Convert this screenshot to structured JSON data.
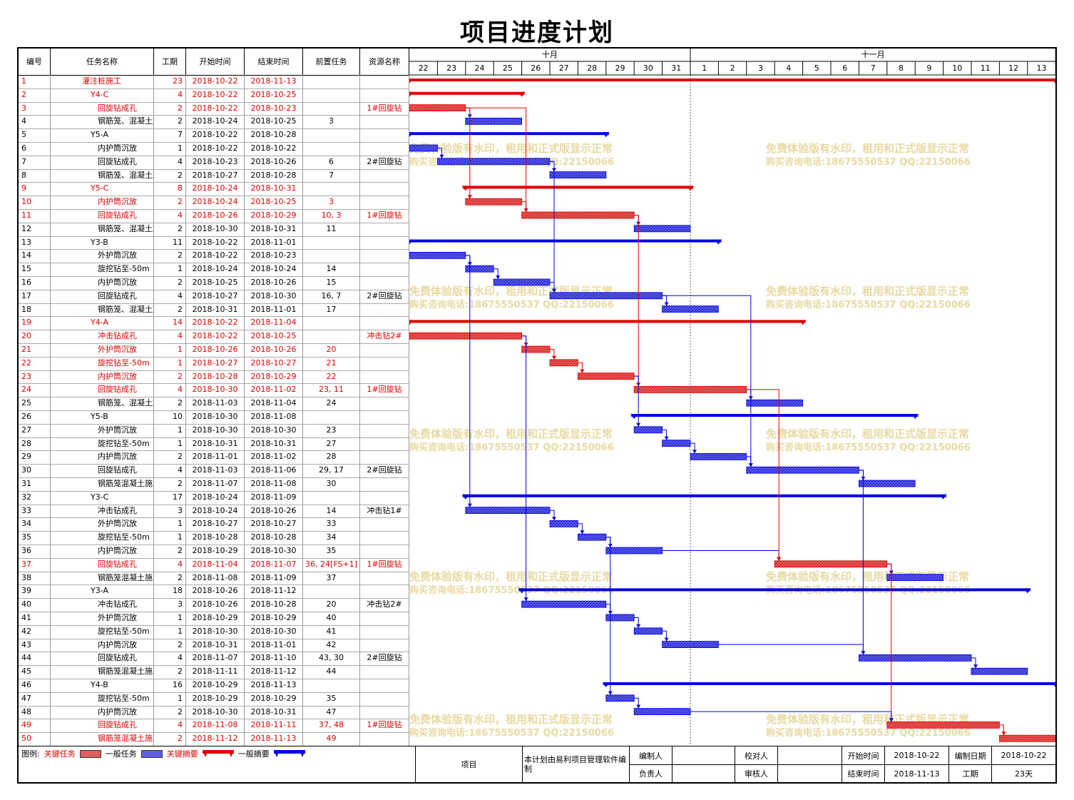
{
  "title": "项目进度计划",
  "columns": [
    "编号",
    "任务名称",
    "工期",
    "开始时间",
    "结束时间",
    "前置任务",
    "资源名称"
  ],
  "months": [
    {
      "label": "十月",
      "from": 0,
      "to": 10
    },
    {
      "label": "十一月",
      "from": 10,
      "to": 23
    }
  ],
  "days": [
    "22",
    "23",
    "24",
    "25",
    "26",
    "27",
    "28",
    "29",
    "30",
    "31",
    "1",
    "2",
    "3",
    "4",
    "5",
    "6",
    "7",
    "8",
    "9",
    "10",
    "11",
    "12",
    "13"
  ],
  "tasks": [
    {
      "id": "1",
      "name": "灌注桩施工",
      "dur": "23",
      "start": "2018-10-22",
      "end": "2018-11-13",
      "pred": "",
      "res": "",
      "lvl": 1,
      "crit": true,
      "summary": true,
      "s": 0,
      "e": 23
    },
    {
      "id": "2",
      "name": "Y4-C",
      "dur": "4",
      "start": "2018-10-22",
      "end": "2018-10-25",
      "pred": "",
      "res": "",
      "lvl": 2,
      "crit": true,
      "summary": true,
      "s": 0,
      "e": 4
    },
    {
      "id": "3",
      "name": "回旋钻成孔",
      "dur": "2",
      "start": "2018-10-22",
      "end": "2018-10-23",
      "pred": "",
      "res": "1#回旋钻",
      "lvl": 3,
      "crit": true,
      "summary": false,
      "s": 0,
      "e": 2
    },
    {
      "id": "4",
      "name": "钢筋笼、混凝土施工",
      "dur": "2",
      "start": "2018-10-24",
      "end": "2018-10-25",
      "pred": "3",
      "res": "",
      "lvl": 3,
      "crit": false,
      "summary": false,
      "s": 2,
      "e": 4
    },
    {
      "id": "5",
      "name": "Y5-A",
      "dur": "7",
      "start": "2018-10-22",
      "end": "2018-10-28",
      "pred": "",
      "res": "",
      "lvl": 2,
      "crit": false,
      "summary": true,
      "s": 0,
      "e": 7
    },
    {
      "id": "6",
      "name": "内护筒沉放",
      "dur": "1",
      "start": "2018-10-22",
      "end": "2018-10-22",
      "pred": "",
      "res": "",
      "lvl": 3,
      "crit": false,
      "summary": false,
      "s": 0,
      "e": 1
    },
    {
      "id": "7",
      "name": "回旋钻成孔",
      "dur": "4",
      "start": "2018-10-23",
      "end": "2018-10-26",
      "pred": "6",
      "res": "2#回旋钻",
      "lvl": 3,
      "crit": false,
      "summary": false,
      "s": 1,
      "e": 5
    },
    {
      "id": "8",
      "name": "钢筋笼、混凝土施工",
      "dur": "2",
      "start": "2018-10-27",
      "end": "2018-10-28",
      "pred": "7",
      "res": "",
      "lvl": 3,
      "crit": false,
      "summary": false,
      "s": 5,
      "e": 7
    },
    {
      "id": "9",
      "name": "Y5-C",
      "dur": "8",
      "start": "2018-10-24",
      "end": "2018-10-31",
      "pred": "",
      "res": "",
      "lvl": 2,
      "crit": true,
      "summary": true,
      "s": 2,
      "e": 10
    },
    {
      "id": "10",
      "name": "内护筒沉放",
      "dur": "2",
      "start": "2018-10-24",
      "end": "2018-10-25",
      "pred": "3",
      "res": "",
      "lvl": 3,
      "crit": true,
      "summary": false,
      "s": 2,
      "e": 4
    },
    {
      "id": "11",
      "name": "回旋钻成孔",
      "dur": "4",
      "start": "2018-10-26",
      "end": "2018-10-29",
      "pred": "10, 3",
      "res": "1#回旋钻",
      "lvl": 3,
      "crit": true,
      "summary": false,
      "s": 4,
      "e": 8
    },
    {
      "id": "12",
      "name": "钢筋笼、混凝土施工",
      "dur": "2",
      "start": "2018-10-30",
      "end": "2018-10-31",
      "pred": "11",
      "res": "",
      "lvl": 3,
      "crit": false,
      "summary": false,
      "s": 8,
      "e": 10
    },
    {
      "id": "13",
      "name": "Y3-B",
      "dur": "11",
      "start": "2018-10-22",
      "end": "2018-11-01",
      "pred": "",
      "res": "",
      "lvl": 2,
      "crit": false,
      "summary": true,
      "s": 0,
      "e": 11
    },
    {
      "id": "14",
      "name": "外护筒沉放",
      "dur": "2",
      "start": "2018-10-22",
      "end": "2018-10-23",
      "pred": "",
      "res": "",
      "lvl": 3,
      "crit": false,
      "summary": false,
      "s": 0,
      "e": 2
    },
    {
      "id": "15",
      "name": "旋挖钻至-50m",
      "dur": "1",
      "start": "2018-10-24",
      "end": "2018-10-24",
      "pred": "14",
      "res": "",
      "lvl": 3,
      "crit": false,
      "summary": false,
      "s": 2,
      "e": 3
    },
    {
      "id": "16",
      "name": "内护筒沉放",
      "dur": "2",
      "start": "2018-10-25",
      "end": "2018-10-26",
      "pred": "15",
      "res": "",
      "lvl": 3,
      "crit": false,
      "summary": false,
      "s": 3,
      "e": 5
    },
    {
      "id": "17",
      "name": "回旋钻成孔",
      "dur": "4",
      "start": "2018-10-27",
      "end": "2018-10-30",
      "pred": "16, 7",
      "res": "2#回旋钻",
      "lvl": 3,
      "crit": false,
      "summary": false,
      "s": 5,
      "e": 9
    },
    {
      "id": "18",
      "name": "钢筋笼、混凝土施工",
      "dur": "2",
      "start": "2018-10-31",
      "end": "2018-11-01",
      "pred": "17",
      "res": "",
      "lvl": 3,
      "crit": false,
      "summary": false,
      "s": 9,
      "e": 11
    },
    {
      "id": "19",
      "name": "Y4-A",
      "dur": "14",
      "start": "2018-10-22",
      "end": "2018-11-04",
      "pred": "",
      "res": "",
      "lvl": 2,
      "crit": true,
      "summary": true,
      "s": 0,
      "e": 14
    },
    {
      "id": "20",
      "name": "冲击钻成孔",
      "dur": "4",
      "start": "2018-10-22",
      "end": "2018-10-25",
      "pred": "",
      "res": "冲击钻2#",
      "lvl": 3,
      "crit": true,
      "summary": false,
      "s": 0,
      "e": 4
    },
    {
      "id": "21",
      "name": "外护筒沉放",
      "dur": "1",
      "start": "2018-10-26",
      "end": "2018-10-26",
      "pred": "20",
      "res": "",
      "lvl": 3,
      "crit": true,
      "summary": false,
      "s": 4,
      "e": 5
    },
    {
      "id": "22",
      "name": "旋挖钻至-50m",
      "dur": "1",
      "start": "2018-10-27",
      "end": "2018-10-27",
      "pred": "21",
      "res": "",
      "lvl": 3,
      "crit": true,
      "summary": false,
      "s": 5,
      "e": 6
    },
    {
      "id": "23",
      "name": "内护筒沉放",
      "dur": "2",
      "start": "2018-10-28",
      "end": "2018-10-29",
      "pred": "22",
      "res": "",
      "lvl": 3,
      "crit": true,
      "summary": false,
      "s": 6,
      "e": 8
    },
    {
      "id": "24",
      "name": "回旋钻成孔",
      "dur": "4",
      "start": "2018-10-30",
      "end": "2018-11-02",
      "pred": "23, 11",
      "res": "1#回旋钻",
      "lvl": 3,
      "crit": true,
      "summary": false,
      "s": 8,
      "e": 12
    },
    {
      "id": "25",
      "name": "钢筋笼、混凝土施工",
      "dur": "2",
      "start": "2018-11-03",
      "end": "2018-11-04",
      "pred": "24",
      "res": "",
      "lvl": 3,
      "crit": false,
      "summary": false,
      "s": 12,
      "e": 14
    },
    {
      "id": "26",
      "name": "Y5-B",
      "dur": "10",
      "start": "2018-10-30",
      "end": "2018-11-08",
      "pred": "",
      "res": "",
      "lvl": 2,
      "crit": false,
      "summary": true,
      "s": 8,
      "e": 18
    },
    {
      "id": "27",
      "name": "外护筒沉放",
      "dur": "1",
      "start": "2018-10-30",
      "end": "2018-10-30",
      "pred": "23",
      "res": "",
      "lvl": 3,
      "crit": false,
      "summary": false,
      "s": 8,
      "e": 9
    },
    {
      "id": "28",
      "name": "旋挖钻至-50m",
      "dur": "1",
      "start": "2018-10-31",
      "end": "2018-10-31",
      "pred": "27",
      "res": "",
      "lvl": 3,
      "crit": false,
      "summary": false,
      "s": 9,
      "e": 10
    },
    {
      "id": "29",
      "name": "内护筒沉放",
      "dur": "2",
      "start": "2018-11-01",
      "end": "2018-11-02",
      "pred": "28",
      "res": "",
      "lvl": 3,
      "crit": false,
      "summary": false,
      "s": 10,
      "e": 12
    },
    {
      "id": "30",
      "name": "回旋钻成孔",
      "dur": "4",
      "start": "2018-11-03",
      "end": "2018-11-06",
      "pred": "29, 17",
      "res": "2#回旋钻",
      "lvl": 3,
      "crit": false,
      "summary": false,
      "s": 12,
      "e": 16
    },
    {
      "id": "31",
      "name": "钢筋笼混凝土施工",
      "dur": "2",
      "start": "2018-11-07",
      "end": "2018-11-08",
      "pred": "30",
      "res": "",
      "lvl": 3,
      "crit": false,
      "summary": false,
      "s": 16,
      "e": 18
    },
    {
      "id": "32",
      "name": "Y3-C",
      "dur": "17",
      "start": "2018-10-24",
      "end": "2018-11-09",
      "pred": "",
      "res": "",
      "lvl": 2,
      "crit": false,
      "summary": true,
      "s": 2,
      "e": 19
    },
    {
      "id": "33",
      "name": "冲击钻成孔",
      "dur": "3",
      "start": "2018-10-24",
      "end": "2018-10-26",
      "pred": "14",
      "res": "冲击钻1#",
      "lvl": 3,
      "crit": false,
      "summary": false,
      "s": 2,
      "e": 5
    },
    {
      "id": "34",
      "name": "外护筒沉放",
      "dur": "1",
      "start": "2018-10-27",
      "end": "2018-10-27",
      "pred": "33",
      "res": "",
      "lvl": 3,
      "crit": false,
      "summary": false,
      "s": 5,
      "e": 6
    },
    {
      "id": "35",
      "name": "旋挖钻至-50m",
      "dur": "1",
      "start": "2018-10-28",
      "end": "2018-10-28",
      "pred": "34",
      "res": "",
      "lvl": 3,
      "crit": false,
      "summary": false,
      "s": 6,
      "e": 7
    },
    {
      "id": "36",
      "name": "内护筒沉放",
      "dur": "2",
      "start": "2018-10-29",
      "end": "2018-10-30",
      "pred": "35",
      "res": "",
      "lvl": 3,
      "crit": false,
      "summary": false,
      "s": 7,
      "e": 9
    },
    {
      "id": "37",
      "name": "回旋钻成孔",
      "dur": "4",
      "start": "2018-11-04",
      "end": "2018-11-07",
      "pred": "36, 24[FS+1]",
      "res": "1#回旋钻",
      "lvl": 3,
      "crit": true,
      "summary": false,
      "s": 13,
      "e": 17
    },
    {
      "id": "38",
      "name": "钢筋笼混凝土施工",
      "dur": "2",
      "start": "2018-11-08",
      "end": "2018-11-09",
      "pred": "37",
      "res": "",
      "lvl": 3,
      "crit": false,
      "summary": false,
      "s": 17,
      "e": 19
    },
    {
      "id": "39",
      "name": "Y3-A",
      "dur": "18",
      "start": "2018-10-26",
      "end": "2018-11-12",
      "pred": "",
      "res": "",
      "lvl": 2,
      "crit": false,
      "summary": true,
      "s": 4,
      "e": 22
    },
    {
      "id": "40",
      "name": "冲击钻成孔",
      "dur": "3",
      "start": "2018-10-26",
      "end": "2018-10-28",
      "pred": "20",
      "res": "冲击钻2#",
      "lvl": 3,
      "crit": false,
      "summary": false,
      "s": 4,
      "e": 7
    },
    {
      "id": "41",
      "name": "外护筒沉放",
      "dur": "1",
      "start": "2018-10-29",
      "end": "2018-10-29",
      "pred": "40",
      "res": "",
      "lvl": 3,
      "crit": false,
      "summary": false,
      "s": 7,
      "e": 8
    },
    {
      "id": "42",
      "name": "旋挖钻至-50m",
      "dur": "1",
      "start": "2018-10-30",
      "end": "2018-10-30",
      "pred": "41",
      "res": "",
      "lvl": 3,
      "crit": false,
      "summary": false,
      "s": 8,
      "e": 9
    },
    {
      "id": "43",
      "name": "内护筒沉放",
      "dur": "2",
      "start": "2018-10-31",
      "end": "2018-11-01",
      "pred": "42",
      "res": "",
      "lvl": 3,
      "crit": false,
      "summary": false,
      "s": 9,
      "e": 11
    },
    {
      "id": "44",
      "name": "回旋钻成孔",
      "dur": "4",
      "start": "2018-11-07",
      "end": "2018-11-10",
      "pred": "43, 30",
      "res": "2#回旋钻",
      "lvl": 3,
      "crit": false,
      "summary": false,
      "s": 16,
      "e": 20
    },
    {
      "id": "45",
      "name": "钢筋笼混凝土施工",
      "dur": "2",
      "start": "2018-11-11",
      "end": "2018-11-12",
      "pred": "44",
      "res": "",
      "lvl": 3,
      "crit": false,
      "summary": false,
      "s": 20,
      "e": 22
    },
    {
      "id": "46",
      "name": "Y4-B",
      "dur": "16",
      "start": "2018-10-29",
      "end": "2018-11-13",
      "pred": "",
      "res": "",
      "lvl": 2,
      "crit": false,
      "summary": true,
      "s": 7,
      "e": 23
    },
    {
      "id": "47",
      "name": "旋挖钻至-50m",
      "dur": "1",
      "start": "2018-10-29",
      "end": "2018-10-29",
      "pred": "35",
      "res": "",
      "lvl": 3,
      "crit": false,
      "summary": false,
      "s": 7,
      "e": 8
    },
    {
      "id": "48",
      "name": "内护筒沉放",
      "dur": "2",
      "start": "2018-10-30",
      "end": "2018-10-31",
      "pred": "47",
      "res": "",
      "lvl": 3,
      "crit": false,
      "summary": false,
      "s": 8,
      "e": 10
    },
    {
      "id": "49",
      "name": "回旋钻成孔",
      "dur": "4",
      "start": "2018-11-08",
      "end": "2018-11-11",
      "pred": "37, 48",
      "res": "1#回旋钻",
      "lvl": 3,
      "crit": true,
      "summary": false,
      "s": 17,
      "e": 21
    },
    {
      "id": "50",
      "name": "钢筋笼混凝土施工",
      "dur": "2",
      "start": "2018-11-12",
      "end": "2018-11-13",
      "pred": "49",
      "res": "",
      "lvl": 3,
      "crit": true,
      "summary": false,
      "s": 21,
      "e": 23
    }
  ],
  "watermark": {
    "line1": "免费体验版有水印，租用和正式版显示正常",
    "line2": "购买咨询电话:18675550537 QQ:22150066",
    "color": "#e8d9a0"
  },
  "colors": {
    "critical": "#e00000",
    "normal": "#0000e0",
    "critical_fill": "#e06060",
    "normal_fill": "#6060e0"
  },
  "legend": {
    "label": "图例:",
    "critical_task": "关键任务",
    "normal_task": "一般任务",
    "critical_summary": "关键摘要",
    "normal_summary": "一般摘要"
  },
  "footer": {
    "project_label": "项目",
    "software_note": "本计划由易利项目管理软件编制",
    "maker_label": "编制人",
    "maker": "",
    "checker_label": "校对人",
    "checker": "",
    "owner_label": "负责人",
    "owner": "",
    "reviewer_label": "审核人",
    "reviewer": "",
    "start_label": "开始时间",
    "start": "2018-10-22",
    "end_label": "结束时间",
    "end": "2018-11-13",
    "made_date_label": "编制日期",
    "made_date": "2018-10-22",
    "duration_label": "工期",
    "duration": "23天"
  }
}
